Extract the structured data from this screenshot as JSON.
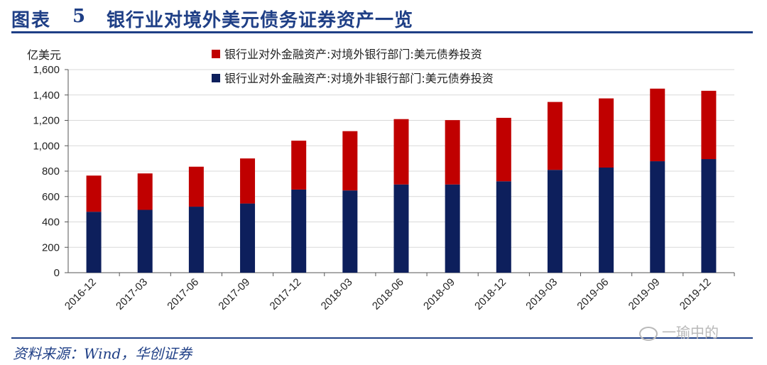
{
  "header": {
    "figure_label": "图表",
    "figure_number": "5",
    "title": "银行业对境外美元债务证券资产一览"
  },
  "footer": {
    "source": "资料来源：Wind，华创证券",
    "watermark": "一瑜中的"
  },
  "colors": {
    "title_blue": "#1f3f86",
    "series_top": "#c00000",
    "series_bottom": "#0d1f5c"
  },
  "chart_data": {
    "type": "bar",
    "stacked": true,
    "y_unit": "亿美元",
    "ylim": [
      0,
      1600
    ],
    "yticks": [
      "0",
      "200",
      "400",
      "600",
      "800",
      "1,000",
      "1,200",
      "1,400",
      "1,600"
    ],
    "ytick_values": [
      0,
      200,
      400,
      600,
      800,
      1000,
      1200,
      1400,
      1600
    ],
    "grid": "horizontal",
    "legend_position": "top",
    "categories": [
      "2016-12",
      "2017-03",
      "2017-06",
      "2017-09",
      "2017-12",
      "2018-03",
      "2018-06",
      "2018-09",
      "2018-12",
      "2019-03",
      "2019-06",
      "2019-09",
      "2019-12"
    ],
    "series": [
      {
        "name": "银行业对外金融资产:对境外非银行部门:美元债券投资",
        "color": "#0d1f5c",
        "values": [
          480,
          495,
          520,
          545,
          655,
          648,
          695,
          695,
          720,
          810,
          828,
          878,
          895
        ]
      },
      {
        "name": "银行业对外金融资产:对境外银行部门:美元债券投资",
        "color": "#c00000",
        "values": [
          285,
          287,
          315,
          355,
          385,
          467,
          515,
          507,
          500,
          535,
          545,
          572,
          538
        ]
      }
    ]
  }
}
